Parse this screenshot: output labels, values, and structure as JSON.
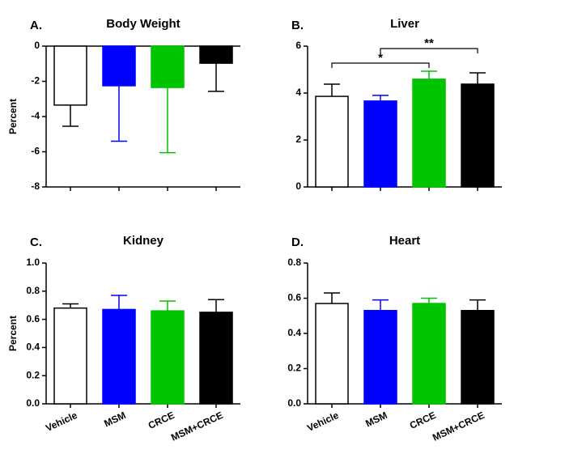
{
  "chart_data": [
    {
      "type": "bar",
      "panel": "A.",
      "title": "Body Weight",
      "ylabel": "Percent",
      "categories": [
        null,
        null,
        null,
        null
      ],
      "values": [
        -3.35,
        -2.25,
        -2.35,
        -0.97
      ],
      "errors": [
        1.2,
        3.15,
        3.7,
        1.6
      ],
      "colors": [
        "#ffffff",
        "#0000ff",
        "#00c400",
        "#000000"
      ],
      "error_colors": [
        "#000000",
        "#0000ff",
        "#00c400",
        "#000000"
      ],
      "ylim": [
        -8,
        0
      ],
      "yticks": [
        0,
        -2,
        -4,
        -6,
        -8
      ]
    },
    {
      "type": "bar",
      "panel": "B.",
      "title": "Liver",
      "categories": [
        null,
        null,
        null,
        null
      ],
      "values": [
        3.86,
        3.66,
        4.59,
        4.38
      ],
      "errors": [
        0.52,
        0.24,
        0.34,
        0.48
      ],
      "colors": [
        "#ffffff",
        "#0000ff",
        "#00c400",
        "#000000"
      ],
      "error_colors": [
        "#000000",
        "#0000ff",
        "#00c400",
        "#000000"
      ],
      "ylim": [
        0,
        6
      ],
      "yticks": [
        0,
        2,
        4,
        6
      ],
      "annotations": [
        {
          "text": "*",
          "from": 0,
          "to": 2
        },
        {
          "text": "**",
          "from": 1,
          "to": 3
        }
      ]
    },
    {
      "type": "bar",
      "panel": "C.",
      "title": "Kidney",
      "ylabel": "Percent",
      "categories": [
        "Vehicle",
        "MSM",
        "CRCE",
        "MSM+CRCE"
      ],
      "values": [
        0.68,
        0.67,
        0.66,
        0.65
      ],
      "errors": [
        0.03,
        0.1,
        0.07,
        0.09
      ],
      "colors": [
        "#ffffff",
        "#0000ff",
        "#00c400",
        "#000000"
      ],
      "error_colors": [
        "#000000",
        "#0000ff",
        "#00c400",
        "#000000"
      ],
      "ylim": [
        0,
        1.0
      ],
      "yticks": [
        {
          "value": 0,
          "label": "0.0"
        },
        0.2,
        0.4,
        0.6,
        0.8,
        {
          "value": 1,
          "label": "1.0"
        }
      ]
    },
    {
      "type": "bar",
      "panel": "D.",
      "title": "Heart",
      "categories": [
        "Vehicle",
        "MSM",
        "CRCE",
        "MSM+CRCE"
      ],
      "values": [
        0.57,
        0.53,
        0.57,
        0.53
      ],
      "errors": [
        0.06,
        0.06,
        0.03,
        0.06
      ],
      "colors": [
        "#ffffff",
        "#0000ff",
        "#00c400",
        "#000000"
      ],
      "error_colors": [
        "#000000",
        "#0000ff",
        "#00c400",
        "#000000"
      ],
      "ylim": [
        0,
        0.8
      ],
      "yticks": [
        {
          "value": 0,
          "label": "0.0"
        },
        0.2,
        0.4,
        0.6,
        0.8
      ]
    }
  ]
}
